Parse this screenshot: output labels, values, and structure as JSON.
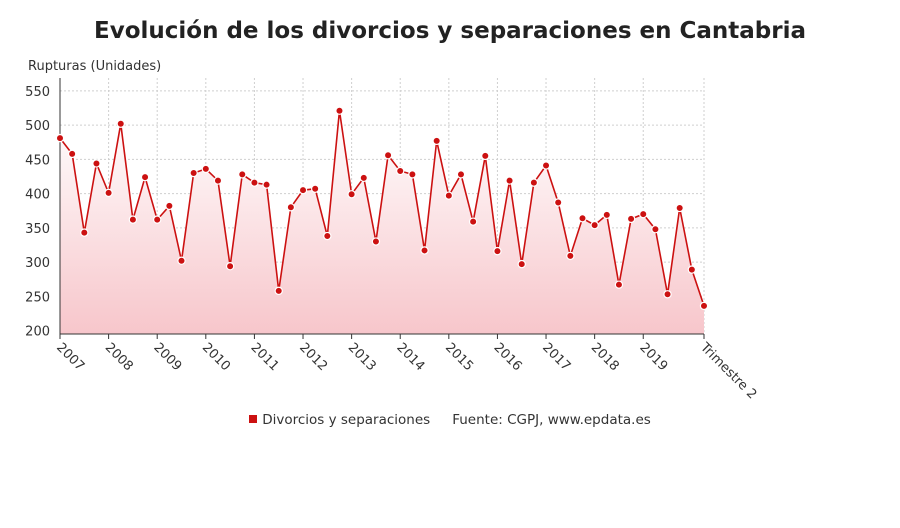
{
  "title": "Evolución de los divorcios y separaciones en Cantabria",
  "legend": {
    "series_label": "Divorcios y separaciones",
    "source": "Fuente: CGPJ, www.epdata.es"
  },
  "colors": {
    "line": "#cc1111",
    "point": "#cc1111",
    "area_top": "#ffffff",
    "area_bottom": "#f7c6cb",
    "grid": "#cfcfcf"
  },
  "chart_data": {
    "type": "area",
    "title": "Evolución de los divorcios y separaciones en Cantabria",
    "ylabel": "Rupturas (Unidades)",
    "xlabel": "",
    "ylim": [
      195,
      560
    ],
    "yticks": [
      200,
      250,
      300,
      350,
      400,
      450,
      500,
      550
    ],
    "xtick_labels": [
      "2007",
      "2008",
      "2009",
      "2010",
      "2011",
      "2012",
      "2013",
      "2014",
      "2015",
      "2016",
      "2017",
      "2018",
      "2019",
      "Trimestre 2"
    ],
    "grid": true,
    "legend_position": "bottom",
    "series": [
      {
        "name": "Divorcios y separaciones",
        "values": [
          481,
          458,
          343,
          444,
          401,
          502,
          362,
          424,
          362,
          382,
          302,
          430,
          436,
          419,
          294,
          428,
          416,
          413,
          258,
          380,
          405,
          407,
          338,
          521,
          399,
          423,
          330,
          456,
          433,
          428,
          317,
          477,
          397,
          428,
          359,
          455,
          316,
          419,
          297,
          416,
          441,
          387,
          309,
          364,
          354,
          369,
          267,
          363,
          370,
          348,
          253,
          379,
          289,
          236
        ]
      }
    ]
  }
}
